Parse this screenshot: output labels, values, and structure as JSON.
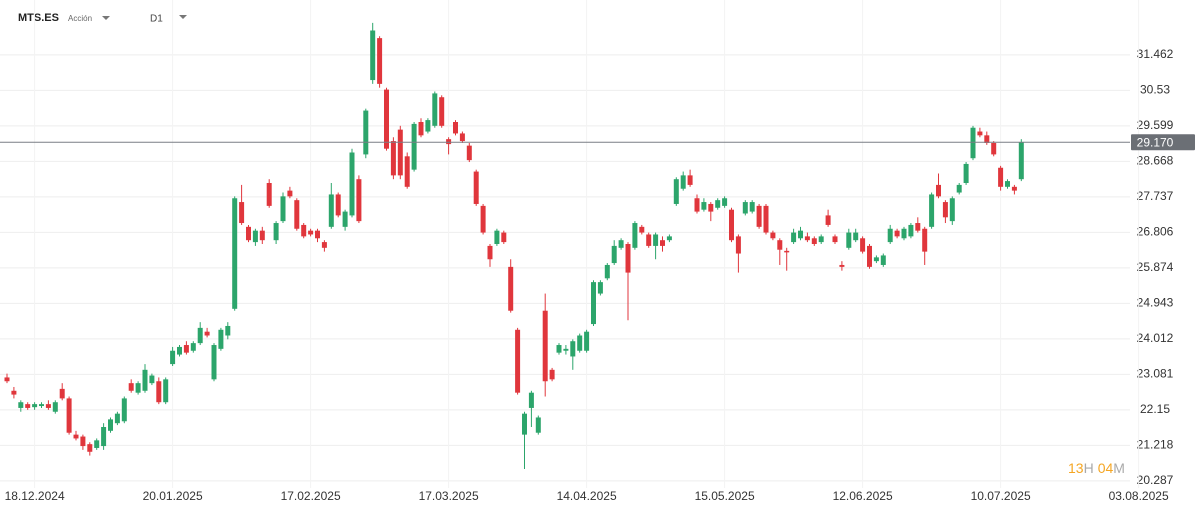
{
  "header": {
    "symbol": "MTS.ES",
    "asset_type": "Acción",
    "timeframe": "D1"
  },
  "countdown": [
    "13",
    "H",
    "04",
    "M"
  ],
  "chart_data": {
    "type": "candlestick",
    "up_color": "#2ca56b",
    "down_color": "#e0363c",
    "grid": true,
    "ylim": [
      20.1,
      32.9
    ],
    "yticks": [
      20.287,
      21.218,
      22.15,
      23.081,
      24.012,
      24.943,
      25.874,
      26.806,
      27.737,
      28.668,
      29.599,
      30.53,
      31.462
    ],
    "last_price": {
      "value": 29.17,
      "label": "29.170"
    },
    "categories": [
      null,
      null,
      null,
      null,
      "18.12.2024",
      null,
      null,
      null,
      null,
      null,
      null,
      null,
      null,
      null,
      null,
      null,
      null,
      null,
      null,
      null,
      null,
      null,
      null,
      null,
      "20.01.2025",
      null,
      null,
      null,
      null,
      null,
      null,
      null,
      null,
      null,
      null,
      null,
      null,
      null,
      null,
      null,
      null,
      null,
      null,
      null,
      "17.02.2025",
      null,
      null,
      null,
      null,
      null,
      null,
      null,
      null,
      null,
      null,
      null,
      null,
      null,
      null,
      null,
      null,
      null,
      null,
      null,
      "17.03.2025",
      null,
      null,
      null,
      null,
      null,
      null,
      null,
      null,
      null,
      null,
      null,
      null,
      null,
      null,
      null,
      null,
      null,
      null,
      null,
      "14.04.2025",
      null,
      null,
      null,
      null,
      null,
      null,
      null,
      null,
      null,
      null,
      null,
      null,
      null,
      null,
      null,
      null,
      null,
      null,
      null,
      "15.05.2025",
      null,
      null,
      null,
      null,
      null,
      null,
      null,
      null,
      null,
      null,
      null,
      null,
      null,
      null,
      null,
      null,
      null,
      null,
      null,
      "12.06.2025",
      null,
      null,
      null,
      null,
      null,
      null,
      null,
      null,
      null,
      null,
      null,
      null,
      null,
      null,
      null,
      null,
      null,
      null,
      null,
      "10.07.2025",
      null,
      null,
      null,
      null,
      null,
      null,
      null,
      null,
      null,
      null,
      null,
      null,
      null,
      null,
      null,
      null,
      null,
      null,
      null,
      "03.08.2025"
    ],
    "candles": [
      [
        23.0,
        23.1,
        22.85,
        22.9
      ],
      [
        22.65,
        22.75,
        22.45,
        22.55
      ],
      [
        22.2,
        22.4,
        22.1,
        22.35
      ],
      [
        22.3,
        22.35,
        22.15,
        22.2
      ],
      [
        22.22,
        22.35,
        22.15,
        22.3
      ],
      [
        22.25,
        22.35,
        22.2,
        22.3
      ],
      [
        22.3,
        22.4,
        22.15,
        22.2
      ],
      [
        22.1,
        22.4,
        22.05,
        22.35
      ],
      [
        22.7,
        22.85,
        22.4,
        22.45
      ],
      [
        22.45,
        22.5,
        21.5,
        21.55
      ],
      [
        21.5,
        21.6,
        21.35,
        21.4
      ],
      [
        21.45,
        21.5,
        21.1,
        21.2
      ],
      [
        21.25,
        21.3,
        20.95,
        21.05
      ],
      [
        21.15,
        21.4,
        21.1,
        21.35
      ],
      [
        21.2,
        21.8,
        21.1,
        21.7
      ],
      [
        21.6,
        21.95,
        21.55,
        21.9
      ],
      [
        21.8,
        22.1,
        21.75,
        22.05
      ],
      [
        21.85,
        22.5,
        21.8,
        22.45
      ],
      [
        22.85,
        22.95,
        22.6,
        22.65
      ],
      [
        22.6,
        22.9,
        22.55,
        22.85
      ],
      [
        22.65,
        23.35,
        22.6,
        23.2
      ],
      [
        22.85,
        23.1,
        22.8,
        23.05
      ],
      [
        22.9,
        23.0,
        22.3,
        22.35
      ],
      [
        22.35,
        23.0,
        22.3,
        22.95
      ],
      [
        23.35,
        23.8,
        23.3,
        23.7
      ],
      [
        23.6,
        23.85,
        23.55,
        23.8
      ],
      [
        23.85,
        23.95,
        23.6,
        23.65
      ],
      [
        23.7,
        23.95,
        23.65,
        23.9
      ],
      [
        23.9,
        24.45,
        23.85,
        24.3
      ],
      [
        24.2,
        24.3,
        24.05,
        24.1
      ],
      [
        22.95,
        23.9,
        22.9,
        23.85
      ],
      [
        23.75,
        24.3,
        23.7,
        24.25
      ],
      [
        24.1,
        24.45,
        24.0,
        24.35
      ],
      [
        24.8,
        27.75,
        24.75,
        27.7
      ],
      [
        27.6,
        28.05,
        27.0,
        27.05
      ],
      [
        26.95,
        27.0,
        26.55,
        26.6
      ],
      [
        26.55,
        26.9,
        26.45,
        26.85
      ],
      [
        26.85,
        26.95,
        26.5,
        26.6
      ],
      [
        28.1,
        28.2,
        27.45,
        27.5
      ],
      [
        26.6,
        27.1,
        26.5,
        27.05
      ],
      [
        27.1,
        27.85,
        27.05,
        27.75
      ],
      [
        27.9,
        28.0,
        27.7,
        27.75
      ],
      [
        27.65,
        27.7,
        26.85,
        26.9
      ],
      [
        27.0,
        27.05,
        26.65,
        26.7
      ],
      [
        26.85,
        26.9,
        26.7,
        26.75
      ],
      [
        26.85,
        26.9,
        26.55,
        26.65
      ],
      [
        26.55,
        26.6,
        26.3,
        26.4
      ],
      [
        26.95,
        28.1,
        26.9,
        27.8
      ],
      [
        27.8,
        27.85,
        27.2,
        27.25
      ],
      [
        26.95,
        27.4,
        26.85,
        27.35
      ],
      [
        27.25,
        29.0,
        27.2,
        28.9
      ],
      [
        28.2,
        28.3,
        27.05,
        27.1
      ],
      [
        28.85,
        30.05,
        28.75,
        30.0
      ],
      [
        30.8,
        32.3,
        30.7,
        32.1
      ],
      [
        31.9,
        31.95,
        30.6,
        30.7
      ],
      [
        30.55,
        30.6,
        28.95,
        29.0
      ],
      [
        29.2,
        29.3,
        28.2,
        28.3
      ],
      [
        29.5,
        29.6,
        28.2,
        28.3
      ],
      [
        28.8,
        28.9,
        27.95,
        28.0
      ],
      [
        28.45,
        29.7,
        28.4,
        29.65
      ],
      [
        29.7,
        29.8,
        29.3,
        29.35
      ],
      [
        29.45,
        29.8,
        29.4,
        29.75
      ],
      [
        29.6,
        30.5,
        29.55,
        30.45
      ],
      [
        30.35,
        30.4,
        29.55,
        29.6
      ],
      [
        29.25,
        29.3,
        28.85,
        29.12
      ],
      [
        29.7,
        29.75,
        29.35,
        29.4
      ],
      [
        29.4,
        29.45,
        29.15,
        29.2
      ],
      [
        29.08,
        29.15,
        28.65,
        28.7
      ],
      [
        28.4,
        28.45,
        27.5,
        27.55
      ],
      [
        27.5,
        27.55,
        26.75,
        26.8
      ],
      [
        26.45,
        26.5,
        25.9,
        26.1
      ],
      [
        26.5,
        26.9,
        26.45,
        26.85
      ],
      [
        26.8,
        26.85,
        26.5,
        26.55
      ],
      [
        25.9,
        26.1,
        24.7,
        24.75
      ],
      [
        24.25,
        24.3,
        22.55,
        22.6
      ],
      [
        21.5,
        22.1,
        20.6,
        22.05
      ],
      [
        22.2,
        22.65,
        21.7,
        22.6
      ],
      [
        21.55,
        22.0,
        21.5,
        21.95
      ],
      [
        24.75,
        25.2,
        22.5,
        22.9
      ],
      [
        23.2,
        23.25,
        22.9,
        22.95
      ],
      [
        23.65,
        23.9,
        23.6,
        23.85
      ],
      [
        23.7,
        23.85,
        23.6,
        23.75
      ],
      [
        23.55,
        24.0,
        23.2,
        23.95
      ],
      [
        23.7,
        24.15,
        23.65,
        24.1
      ],
      [
        23.7,
        24.25,
        23.65,
        24.2
      ],
      [
        24.4,
        25.55,
        24.35,
        25.5
      ],
      [
        25.2,
        25.55,
        25.15,
        25.5
      ],
      [
        25.6,
        26.0,
        25.55,
        25.95
      ],
      [
        26.0,
        26.6,
        25.95,
        26.45
      ],
      [
        26.4,
        26.65,
        26.35,
        26.6
      ],
      [
        26.5,
        26.55,
        24.5,
        25.75
      ],
      [
        26.4,
        27.1,
        26.35,
        27.05
      ],
      [
        26.95,
        27.0,
        26.75,
        26.8
      ],
      [
        26.75,
        26.8,
        26.4,
        26.45
      ],
      [
        26.45,
        26.8,
        26.1,
        26.75
      ],
      [
        26.6,
        26.7,
        26.3,
        26.45
      ],
      [
        26.6,
        26.75,
        26.55,
        26.7
      ],
      [
        27.55,
        28.25,
        27.5,
        28.2
      ],
      [
        27.95,
        28.4,
        27.9,
        28.3
      ],
      [
        28.3,
        28.45,
        28.0,
        28.05
      ],
      [
        27.7,
        27.8,
        27.3,
        27.35
      ],
      [
        27.4,
        27.7,
        27.35,
        27.6
      ],
      [
        27.55,
        27.6,
        27.1,
        27.35
      ],
      [
        27.45,
        27.7,
        27.4,
        27.65
      ],
      [
        27.5,
        27.75,
        27.45,
        27.7
      ],
      [
        27.4,
        27.45,
        26.55,
        26.6
      ],
      [
        26.7,
        26.75,
        25.75,
        26.25
      ],
      [
        27.3,
        27.65,
        27.25,
        27.6
      ],
      [
        27.35,
        27.65,
        27.3,
        27.6
      ],
      [
        27.5,
        27.55,
        26.9,
        26.95
      ],
      [
        27.5,
        27.55,
        26.75,
        26.8
      ],
      [
        26.8,
        26.85,
        26.6,
        26.65
      ],
      [
        26.6,
        26.65,
        25.95,
        26.35
      ],
      [
        26.32,
        26.4,
        25.8,
        26.28
      ],
      [
        26.55,
        26.9,
        26.5,
        26.8
      ],
      [
        26.65,
        26.95,
        26.6,
        26.85
      ],
      [
        26.7,
        26.8,
        26.55,
        26.6
      ],
      [
        26.65,
        26.7,
        26.45,
        26.5
      ],
      [
        26.55,
        26.75,
        26.5,
        26.7
      ],
      [
        27.25,
        27.4,
        26.95,
        27.0
      ],
      [
        26.7,
        26.75,
        26.5,
        26.55
      ],
      [
        25.95,
        26.05,
        25.8,
        25.9
      ],
      [
        26.4,
        26.9,
        26.35,
        26.8
      ],
      [
        26.6,
        26.9,
        26.55,
        26.8
      ],
      [
        26.65,
        26.7,
        26.25,
        26.3
      ],
      [
        26.45,
        26.5,
        25.85,
        25.9
      ],
      [
        26.05,
        26.2,
        26.0,
        26.15
      ],
      [
        25.95,
        26.25,
        25.9,
        26.2
      ],
      [
        26.55,
        27.0,
        26.5,
        26.9
      ],
      [
        26.85,
        26.9,
        26.65,
        26.7
      ],
      [
        26.65,
        26.95,
        26.6,
        26.9
      ],
      [
        26.7,
        27.05,
        26.65,
        27.0
      ],
      [
        27.05,
        27.2,
        26.8,
        26.85
      ],
      [
        26.9,
        26.95,
        25.95,
        26.3
      ],
      [
        26.95,
        27.85,
        26.9,
        27.8
      ],
      [
        28.05,
        28.35,
        27.7,
        27.75
      ],
      [
        27.6,
        27.65,
        27.05,
        27.2
      ],
      [
        27.1,
        27.75,
        27.0,
        27.7
      ],
      [
        27.85,
        28.1,
        27.8,
        28.05
      ],
      [
        28.1,
        28.65,
        28.05,
        28.6
      ],
      [
        28.75,
        29.6,
        28.7,
        29.55
      ],
      [
        29.45,
        29.55,
        29.3,
        29.35
      ],
      [
        29.35,
        29.45,
        29.1,
        29.15
      ],
      [
        29.15,
        29.2,
        28.8,
        28.85
      ],
      [
        28.5,
        28.55,
        27.9,
        28.0
      ],
      [
        28.0,
        28.2,
        27.95,
        28.15
      ],
      [
        28.0,
        28.05,
        27.8,
        27.9
      ],
      [
        28.2,
        29.25,
        28.15,
        29.17
      ],
      null,
      null,
      null,
      null,
      null,
      null,
      null,
      null,
      null,
      null,
      null,
      null,
      null,
      null,
      null,
      null,
      null
    ]
  }
}
